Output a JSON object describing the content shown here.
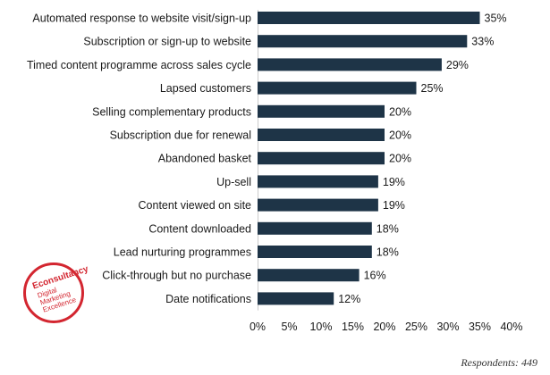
{
  "chart_data": {
    "type": "bar",
    "orientation": "horizontal",
    "title": "",
    "xlabel": "",
    "ylabel": "",
    "categories": [
      "Automated response to website visit/sign-up",
      "Subscription or sign-up to website",
      "Timed content programme across sales cycle",
      "Lapsed customers",
      "Selling complementary products",
      "Subscription due for renewal",
      "Abandoned basket",
      "Up-sell",
      "Content viewed on site",
      "Content downloaded",
      "Lead nurturing programmes",
      "Click-through but no purchase",
      "Date notifications"
    ],
    "values": [
      35,
      33,
      29,
      25,
      20,
      20,
      20,
      19,
      19,
      18,
      18,
      16,
      12
    ],
    "value_labels": [
      "35%",
      "33%",
      "29%",
      "25%",
      "20%",
      "20%",
      "20%",
      "19%",
      "19%",
      "18%",
      "18%",
      "16%",
      "12%"
    ],
    "xlim": [
      0,
      40
    ],
    "ticks": [
      0,
      5,
      10,
      15,
      20,
      25,
      30,
      35,
      40
    ],
    "tick_labels": [
      "0%",
      "5%",
      "10%",
      "15%",
      "20%",
      "25%",
      "30%",
      "35%",
      "40%"
    ],
    "grid": false,
    "legend": "none",
    "bar_color": "#1e3447"
  },
  "footer": {
    "respondents": "Respondents: 449"
  },
  "logo": {
    "brand": "Econsultancy",
    "tagline": [
      "Digital",
      "Marketing",
      "Excellence"
    ]
  }
}
